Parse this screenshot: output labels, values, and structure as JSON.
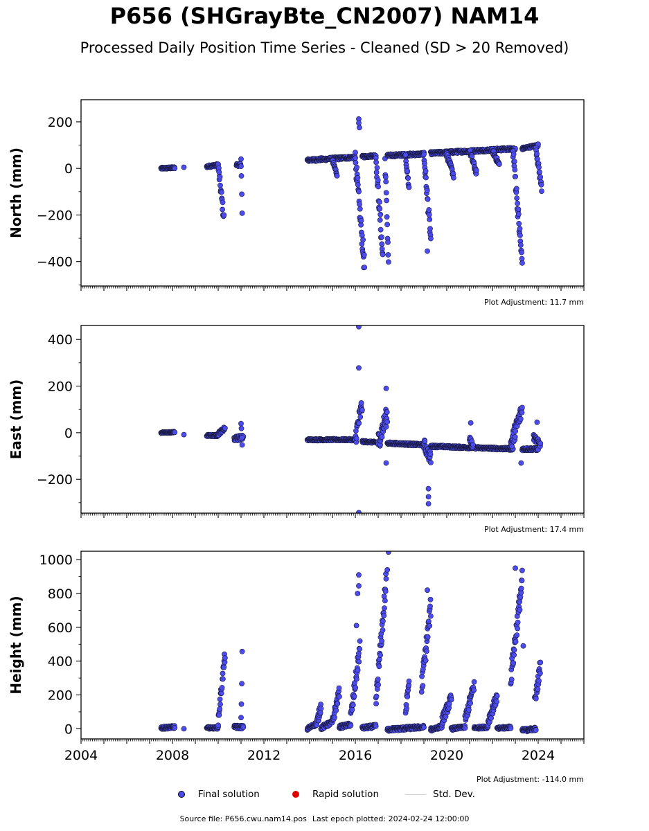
{
  "page": {
    "title": "P656 (SHGrayBte_CN2007) NAM14",
    "subtitle": "Processed Daily Position Time Series - Cleaned (SD > 20 Removed)",
    "source_file": "Source file: P656.cwu.nam14.pos",
    "last_epoch": "Last epoch plotted: 2024-02-24 12:00:00"
  },
  "legend": [
    {
      "label": "Final solution",
      "kind": "marker",
      "color": "#4b4bf0"
    },
    {
      "label": "Rapid solution",
      "kind": "marker",
      "color": "#e00000"
    },
    {
      "label": "Std. Dev.",
      "kind": "line",
      "color": "#d0d0d0"
    }
  ],
  "colors": {
    "final": "#4b4bf0",
    "rapid": "#e00000",
    "edge": "#1a1a40",
    "stddev": "#d0d0d0"
  },
  "chart_data": [
    {
      "type": "scatter",
      "ylabel": "North (mm)",
      "adjustment": "Plot Adjustment: 11.7 mm",
      "xlim": [
        2004,
        2026
      ],
      "ylim": [
        -505,
        295
      ],
      "yticks": [
        -400,
        -200,
        0,
        200
      ],
      "show_xticklabels": false,
      "segments": [
        {
          "x": [
            2007.5,
            2008.1
          ],
          "y": [
            0,
            3
          ],
          "noise": 4
        },
        {
          "x": [
            2009.5,
            2010.0
          ],
          "y": [
            8,
            15
          ],
          "noise": 5
        },
        {
          "x": [
            2010.0,
            2010.25
          ],
          "y": [
            10,
            -215
          ],
          "noise": 25
        },
        {
          "x": [
            2010.8,
            2011.0
          ],
          "y": [
            15,
            15
          ],
          "noise": 6
        },
        {
          "x": [
            2011.0,
            2011.05
          ],
          "y": [
            50,
            -200
          ],
          "noise": 20
        },
        {
          "x": [
            2013.9,
            2016.0
          ],
          "y": [
            35,
            48
          ],
          "noise": 6
        },
        {
          "x": [
            2015.0,
            2015.2
          ],
          "y": [
            30,
            -25
          ],
          "noise": 10
        },
        {
          "x": [
            2016.0,
            2016.4
          ],
          "y": [
            40,
            -420
          ],
          "noise": 40
        },
        {
          "x": [
            2016.3,
            2016.9
          ],
          "y": [
            50,
            55
          ],
          "noise": 5
        },
        {
          "x": [
            2016.9,
            2017.2
          ],
          "y": [
            50,
            -380
          ],
          "noise": 35
        },
        {
          "x": [
            2017.3,
            2017.45
          ],
          "y": [
            40,
            -400
          ],
          "noise": 30
        },
        {
          "x": [
            2017.4,
            2019.0
          ],
          "y": [
            55,
            62
          ],
          "noise": 6
        },
        {
          "x": [
            2018.2,
            2018.35
          ],
          "y": [
            50,
            -85
          ],
          "noise": 15
        },
        {
          "x": [
            2019.0,
            2019.3
          ],
          "y": [
            55,
            -300
          ],
          "noise": 30
        },
        {
          "x": [
            2019.3,
            2023.0
          ],
          "y": [
            65,
            85
          ],
          "noise": 6
        },
        {
          "x": [
            2020.0,
            2020.3
          ],
          "y": [
            60,
            -30
          ],
          "noise": 12
        },
        {
          "x": [
            2021.0,
            2021.3
          ],
          "y": [
            75,
            -20
          ],
          "noise": 12
        },
        {
          "x": [
            2022.0,
            2022.3
          ],
          "y": [
            75,
            15
          ],
          "noise": 10
        },
        {
          "x": [
            2022.9,
            2023.3
          ],
          "y": [
            80,
            -410
          ],
          "noise": 35
        },
        {
          "x": [
            2023.3,
            2024.0
          ],
          "y": [
            85,
            100
          ],
          "noise": 5
        },
        {
          "x": [
            2023.9,
            2024.15
          ],
          "y": [
            90,
            -85
          ],
          "noise": 15
        }
      ],
      "points": [
        {
          "x": 2008.5,
          "y": 5
        },
        {
          "x": 2016.15,
          "y": 212
        },
        {
          "x": 2016.15,
          "y": 195
        },
        {
          "x": 2016.18,
          "y": 175
        },
        {
          "x": 2019.15,
          "y": -355
        }
      ]
    },
    {
      "type": "scatter",
      "ylabel": "East (mm)",
      "adjustment": "Plot Adjustment: 17.4 mm",
      "xlim": [
        2004,
        2026
      ],
      "ylim": [
        -345,
        460
      ],
      "yticks": [
        -200,
        0,
        200,
        400
      ],
      "show_xticklabels": false,
      "segments": [
        {
          "x": [
            2007.5,
            2008.1
          ],
          "y": [
            0,
            2
          ],
          "noise": 3
        },
        {
          "x": [
            2009.5,
            2010.0
          ],
          "y": [
            -12,
            -12
          ],
          "noise": 4
        },
        {
          "x": [
            2010.0,
            2010.3
          ],
          "y": [
            -5,
            20
          ],
          "noise": 8
        },
        {
          "x": [
            2010.7,
            2011.1
          ],
          "y": [
            -25,
            -20
          ],
          "noise": 10
        },
        {
          "x": [
            2011.0,
            2011.05
          ],
          "y": [
            45,
            -60
          ],
          "noise": 15
        },
        {
          "x": [
            2013.9,
            2016.0
          ],
          "y": [
            -30,
            -30
          ],
          "noise": 4
        },
        {
          "x": [
            2016.0,
            2016.3
          ],
          "y": [
            -20,
            120
          ],
          "noise": 40
        },
        {
          "x": [
            2016.3,
            2017.0
          ],
          "y": [
            -38,
            -42
          ],
          "noise": 4
        },
        {
          "x": [
            2017.0,
            2017.4
          ],
          "y": [
            -40,
            80
          ],
          "noise": 40
        },
        {
          "x": [
            2017.4,
            2019.0
          ],
          "y": [
            -45,
            -52
          ],
          "noise": 5
        },
        {
          "x": [
            2019.0,
            2019.3
          ],
          "y": [
            -50,
            -110
          ],
          "noise": 25
        },
        {
          "x": [
            2019.3,
            2022.9
          ],
          "y": [
            -58,
            -70
          ],
          "noise": 5
        },
        {
          "x": [
            2021.0,
            2021.15
          ],
          "y": [
            -25,
            -55
          ],
          "noise": 10
        },
        {
          "x": [
            2022.8,
            2023.3
          ],
          "y": [
            -50,
            100
          ],
          "noise": 35
        },
        {
          "x": [
            2023.3,
            2024.0
          ],
          "y": [
            -70,
            -70
          ],
          "noise": 6
        },
        {
          "x": [
            2023.8,
            2024.1
          ],
          "y": [
            -20,
            -50
          ],
          "noise": 12
        }
      ],
      "points": [
        {
          "x": 2008.5,
          "y": -8
        },
        {
          "x": 2016.15,
          "y": 455
        },
        {
          "x": 2016.15,
          "y": 278
        },
        {
          "x": 2016.15,
          "y": -343
        },
        {
          "x": 2017.35,
          "y": 190
        },
        {
          "x": 2017.35,
          "y": -130
        },
        {
          "x": 2019.2,
          "y": -240
        },
        {
          "x": 2019.2,
          "y": -275
        },
        {
          "x": 2019.2,
          "y": -305
        },
        {
          "x": 2021.05,
          "y": 42
        },
        {
          "x": 2023.25,
          "y": -130
        },
        {
          "x": 2023.95,
          "y": 45
        }
      ]
    },
    {
      "type": "scatter",
      "ylabel": "Height (mm)",
      "adjustment": "Plot Adjustment: -114.0 mm",
      "xlim": [
        2004,
        2026
      ],
      "ylim": [
        -60,
        1050
      ],
      "yticks": [
        0,
        200,
        400,
        600,
        800,
        1000
      ],
      "show_xticklabels": true,
      "xticks": [
        2004,
        2008,
        2012,
        2016,
        2020,
        2024
      ],
      "segments": [
        {
          "x": [
            2007.5,
            2008.1
          ],
          "y": [
            5,
            10
          ],
          "noise": 8
        },
        {
          "x": [
            2009.5,
            2010.0
          ],
          "y": [
            5,
            5
          ],
          "noise": 6
        },
        {
          "x": [
            2010.0,
            2010.3
          ],
          "y": [
            50,
            440
          ],
          "noise": 35
        },
        {
          "x": [
            2010.7,
            2011.1
          ],
          "y": [
            10,
            10
          ],
          "noise": 10
        },
        {
          "x": [
            2011.0,
            2011.05
          ],
          "y": [
            30,
            420
          ],
          "noise": 40
        },
        {
          "x": [
            2013.9,
            2014.3
          ],
          "y": [
            0,
            30
          ],
          "noise": 10
        },
        {
          "x": [
            2014.3,
            2014.5
          ],
          "y": [
            20,
            140
          ],
          "noise": 30
        },
        {
          "x": [
            2014.5,
            2015.0
          ],
          "y": [
            5,
            40
          ],
          "noise": 12
        },
        {
          "x": [
            2015.0,
            2015.3
          ],
          "y": [
            40,
            220
          ],
          "noise": 30
        },
        {
          "x": [
            2015.3,
            2015.8
          ],
          "y": [
            10,
            25
          ],
          "noise": 10
        },
        {
          "x": [
            2015.8,
            2016.2
          ],
          "y": [
            60,
            480
          ],
          "noise": 50
        },
        {
          "x": [
            2016.3,
            2016.9
          ],
          "y": [
            5,
            15
          ],
          "noise": 10
        },
        {
          "x": [
            2016.9,
            2017.35
          ],
          "y": [
            150,
            880
          ],
          "noise": 60
        },
        {
          "x": [
            2017.4,
            2019.0
          ],
          "y": [
            -5,
            10
          ],
          "noise": 10
        },
        {
          "x": [
            2018.2,
            2018.35
          ],
          "y": [
            100,
            280
          ],
          "noise": 30
        },
        {
          "x": [
            2018.9,
            2019.3
          ],
          "y": [
            250,
            720
          ],
          "noise": 60
        },
        {
          "x": [
            2019.3,
            2019.8
          ],
          "y": [
            -5,
            15
          ],
          "noise": 10
        },
        {
          "x": [
            2019.8,
            2020.2
          ],
          "y": [
            50,
            180
          ],
          "noise": 30
        },
        {
          "x": [
            2020.2,
            2020.8
          ],
          "y": [
            0,
            10
          ],
          "noise": 8
        },
        {
          "x": [
            2020.8,
            2021.2
          ],
          "y": [
            50,
            260
          ],
          "noise": 35
        },
        {
          "x": [
            2021.2,
            2021.8
          ],
          "y": [
            5,
            10
          ],
          "noise": 8
        },
        {
          "x": [
            2021.8,
            2022.2
          ],
          "y": [
            40,
            190
          ],
          "noise": 30
        },
        {
          "x": [
            2022.2,
            2022.8
          ],
          "y": [
            0,
            10
          ],
          "noise": 8
        },
        {
          "x": [
            2022.8,
            2023.3
          ],
          "y": [
            300,
            880
          ],
          "noise": 60
        },
        {
          "x": [
            2023.3,
            2023.9
          ],
          "y": [
            -10,
            0
          ],
          "noise": 10
        },
        {
          "x": [
            2023.85,
            2024.1
          ],
          "y": [
            150,
            380
          ],
          "noise": 40
        }
      ],
      "points": [
        {
          "x": 2008.5,
          "y": 0
        },
        {
          "x": 2016.15,
          "y": 910
        },
        {
          "x": 2016.15,
          "y": 845
        },
        {
          "x": 2016.1,
          "y": 800
        },
        {
          "x": 2016.05,
          "y": 610
        },
        {
          "x": 2017.45,
          "y": 1045
        },
        {
          "x": 2017.4,
          "y": 940
        },
        {
          "x": 2019.15,
          "y": 820
        },
        {
          "x": 2023.0,
          "y": 950
        },
        {
          "x": 2023.35,
          "y": 490
        }
      ]
    }
  ]
}
